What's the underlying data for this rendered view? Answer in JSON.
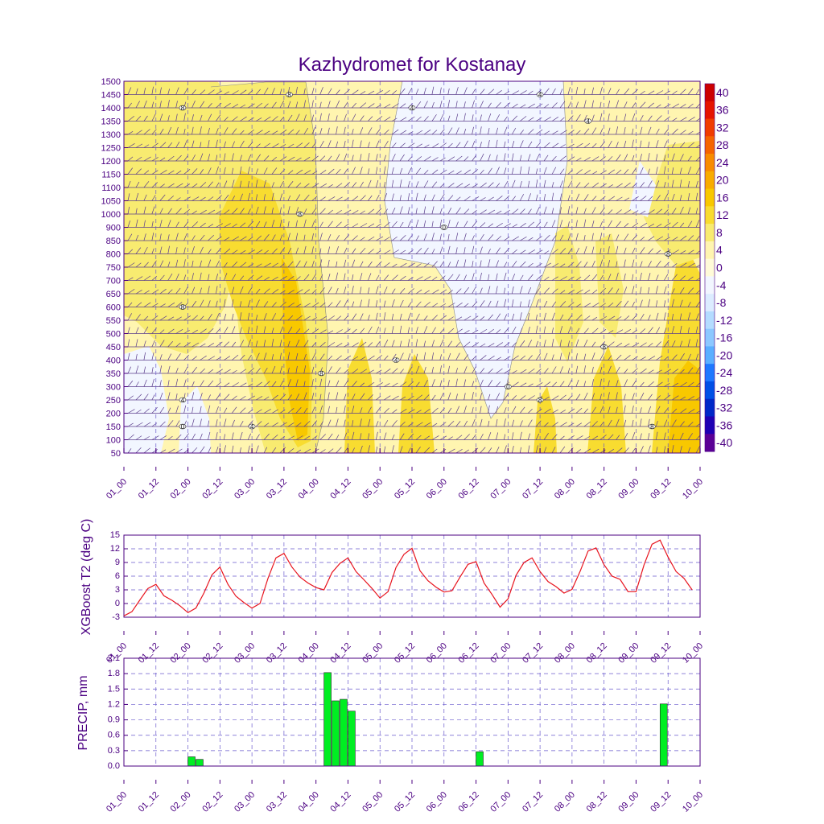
{
  "title": "Kazhydromet for Kostanay",
  "chart_data": [
    {
      "type": "heatmap",
      "subtype": "time-height cross-section with wind barbs",
      "x_tick_labels": [
        "01_00",
        "01_12",
        "02_00",
        "02_12",
        "03_00",
        "03_12",
        "04_00",
        "04_12",
        "05_00",
        "05_12",
        "06_00",
        "06_12",
        "07_00",
        "07_12",
        "08_00",
        "08_12",
        "09_00",
        "09_12",
        "10_00"
      ],
      "y_tick_labels": [
        "50",
        "100",
        "150",
        "200",
        "250",
        "300",
        "350",
        "400",
        "450",
        "500",
        "550",
        "600",
        "650",
        "700",
        "750",
        "800",
        "850",
        "900",
        "1000",
        "1050",
        "1100",
        "1150",
        "1200",
        "1250",
        "1300",
        "1350",
        "1400",
        "1450",
        "1500"
      ],
      "colorbar_levels": [
        "40",
        "36",
        "32",
        "28",
        "24",
        "20",
        "16",
        "12",
        "8",
        "4",
        "0",
        "-4",
        "-8",
        "-12",
        "-16",
        "-20",
        "-24",
        "-28",
        "-32",
        "-36",
        "-40"
      ],
      "colorbar_colors": [
        "#cc0000",
        "#e51400",
        "#f03c00",
        "#f56400",
        "#f88c00",
        "#f8ac00",
        "#f8c800",
        "#f8dc30",
        "#f8eb70",
        "#fff5b0",
        "#fffbd8",
        "#f2f6ff",
        "#dcecff",
        "#b4dcff",
        "#8cc8ff",
        "#5aafff",
        "#1e78ff",
        "#0050e6",
        "#0028c8",
        "#1e00b4",
        "#5a0096"
      ],
      "contour_labels": [
        {
          "text": "4",
          "x": "01_22",
          "y": 250
        },
        {
          "text": "0",
          "x": "01_22",
          "y": 150
        },
        {
          "text": "8",
          "x": "01_22",
          "y": 600
        },
        {
          "text": "8",
          "x": "01_22",
          "y": 1400
        },
        {
          "text": "4",
          "x": "03_00",
          "y": 150
        },
        {
          "text": "8",
          "x": "03_14",
          "y": 1450
        },
        {
          "text": "8",
          "x": "03_18",
          "y": 1000
        },
        {
          "text": "8",
          "x": "04_02",
          "y": 350
        },
        {
          "text": "4",
          "x": "05_06",
          "y": 400
        },
        {
          "text": "4",
          "x": "05_12",
          "y": 1400
        },
        {
          "text": "0",
          "x": "06_00",
          "y": 900
        },
        {
          "text": "0",
          "x": "07_00",
          "y": 300
        },
        {
          "text": "8",
          "x": "07_12",
          "y": 250
        },
        {
          "text": "4",
          "x": "07_12",
          "y": 1450
        },
        {
          "text": "4",
          "x": "08_06",
          "y": 1350
        },
        {
          "text": "8",
          "x": "08_12",
          "y": 450
        },
        {
          "text": "8",
          "x": "09_06",
          "y": 150
        },
        {
          "text": "8",
          "x": "09_12",
          "y": 800
        }
      ]
    },
    {
      "type": "line",
      "ylabel": "XGBoost T2 (deg C)",
      "ylim": [
        -3,
        15
      ],
      "y_ticks": [
        -3,
        0,
        3,
        6,
        9,
        12,
        15
      ],
      "x_tick_labels": [
        "01_00",
        "01_12",
        "02_00",
        "02_12",
        "03_00",
        "03_12",
        "04_00",
        "04_12",
        "05_00",
        "05_12",
        "06_00",
        "06_12",
        "07_00",
        "07_12",
        "08_00",
        "08_12",
        "09_00",
        "09_12",
        "10_00"
      ],
      "x_step_hours": 3,
      "values": [
        -2.7,
        -1.8,
        0.8,
        3.3,
        4.2,
        1.7,
        0.7,
        -0.5,
        -2.0,
        -1.0,
        2.3,
        6.3,
        8.0,
        4.2,
        1.6,
        0.2,
        -1.0,
        0.0,
        5.5,
        10.0,
        11.0,
        8.0,
        5.8,
        4.5,
        3.5,
        3.0,
        6.8,
        8.8,
        10.0,
        7.0,
        5.2,
        3.3,
        1.2,
        2.6,
        7.9,
        10.8,
        12.1,
        7.2,
        5.0,
        3.6,
        2.5,
        2.8,
        5.8,
        8.6,
        9.2,
        4.5,
        2.0,
        -0.8,
        1.0,
        6.2,
        9.0,
        10.0,
        7.0,
        4.8,
        3.7,
        2.3,
        3.1,
        7.0,
        11.5,
        12.2,
        8.5,
        6.0,
        5.3,
        2.6,
        2.6,
        8.5,
        13.0,
        13.9,
        10.2,
        7.0,
        5.5,
        3.0
      ]
    },
    {
      "type": "bar",
      "ylabel": "PRECIP, mm",
      "ylim": [
        0,
        2.1
      ],
      "y_ticks": [
        "0.0",
        "0.3",
        "0.6",
        "0.9",
        "1.2",
        "1.5",
        "1.8",
        "2.1"
      ],
      "x_tick_labels": [
        "01_00",
        "01_12",
        "02_00",
        "02_12",
        "03_00",
        "03_12",
        "04_00",
        "04_12",
        "05_00",
        "05_12",
        "06_00",
        "06_12",
        "07_00",
        "07_12",
        "08_00",
        "08_12",
        "09_00",
        "09_12",
        "10_00"
      ],
      "x_step_hours": 3,
      "values": [
        0,
        0,
        0,
        0,
        0,
        0,
        0,
        0,
        0.18,
        0.13,
        0,
        0,
        0,
        0,
        0,
        0,
        0,
        0,
        0,
        0,
        0,
        0,
        0,
        0,
        0,
        1.82,
        1.27,
        1.3,
        1.07,
        0,
        0,
        0,
        0,
        0,
        0,
        0,
        0,
        0,
        0,
        0,
        0,
        0,
        0,
        0,
        0.28,
        0,
        0,
        0,
        0,
        0,
        0,
        0,
        0,
        0,
        0,
        0,
        0,
        0,
        0,
        0,
        0,
        0,
        0,
        0,
        0,
        0,
        0,
        1.21,
        0,
        0,
        0,
        0
      ],
      "bar_color": "#00ee22"
    }
  ]
}
